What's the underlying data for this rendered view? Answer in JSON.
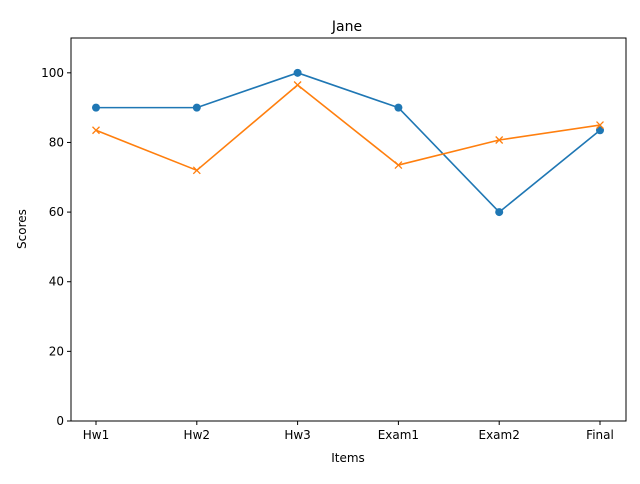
{
  "chart_data": {
    "type": "line",
    "title": "Jane",
    "xlabel": "Items",
    "ylabel": "Scores",
    "categories": [
      "Hw1",
      "Hw2",
      "Hw3",
      "Exam1",
      "Exam2",
      "Final"
    ],
    "ylim": [
      0,
      110
    ],
    "yticks": [
      0,
      20,
      40,
      60,
      80,
      100
    ],
    "grid": false,
    "series": [
      {
        "values": [
          90,
          90,
          100,
          90,
          60,
          83.5
        ],
        "color": "#1f77b4",
        "marker": "circle"
      },
      {
        "values": [
          83.5,
          72,
          96.5,
          73.5,
          80.7,
          85
        ],
        "color": "#ff7f0e",
        "marker": "x"
      }
    ]
  }
}
